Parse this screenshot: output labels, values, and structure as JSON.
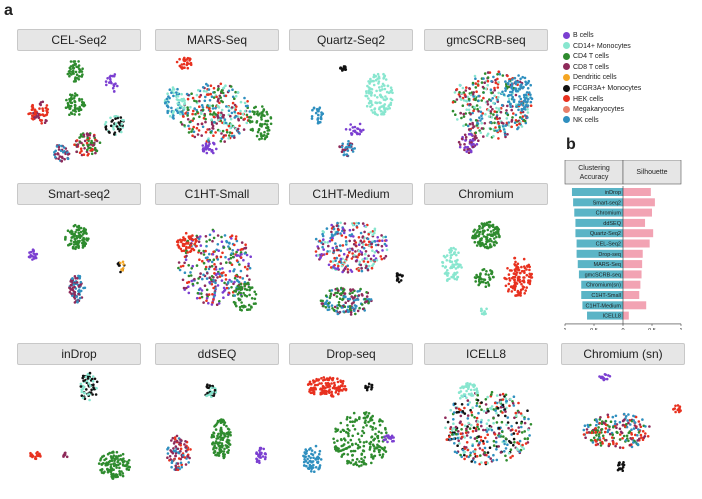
{
  "labels": {
    "panel_a": "a",
    "panel_b": "b"
  },
  "legend": [
    {
      "name": "B cells",
      "color": "#7b3fd1"
    },
    {
      "name": "CD14+ Monocytes",
      "color": "#88e6cf"
    },
    {
      "name": "CD4 T cells",
      "color": "#2e8b2e"
    },
    {
      "name": "CD8 T cells",
      "color": "#8e2a5a"
    },
    {
      "name": "Dendritic cells",
      "color": "#f5a623"
    },
    {
      "name": "FCGR3A+ Monocytes",
      "color": "#111111"
    },
    {
      "name": "HEK cells",
      "color": "#e8311f"
    },
    {
      "name": "Megakaryocytes",
      "color": "#e87f6a"
    },
    {
      "name": "NK cells",
      "color": "#2f8fbf"
    }
  ],
  "panels": [
    {
      "title": "CEL-Seq2"
    },
    {
      "title": "MARS-Seq"
    },
    {
      "title": "Quartz-Seq2"
    },
    {
      "title": "gmcSCRB-seq"
    },
    {
      "title": "Smart-seq2"
    },
    {
      "title": "C1HT-Small"
    },
    {
      "title": "C1HT-Medium"
    },
    {
      "title": "Chromium"
    },
    {
      "title": "inDrop"
    },
    {
      "title": "ddSEQ"
    },
    {
      "title": "Drop-seq"
    },
    {
      "title": "ICELL8"
    },
    {
      "title": "Chromium (sn)"
    }
  ],
  "chart_data": {
    "type": "bar",
    "header_left": "Clustering Accuracy",
    "header_right": "Silhouette",
    "categories": [
      "inDrop",
      "Smart-seq2",
      "Chromium",
      "ddSEQ",
      "Quartz-Seq2",
      "CEL-Seq2",
      "Drop-seq",
      "MARS-Seq",
      "gmcSCRB-seq",
      "Chromium(sn)",
      "C1HT-Small",
      "C1HT-Medium",
      "ICELL8"
    ],
    "series": [
      {
        "values": [
          0.88,
          0.86,
          0.84,
          0.82,
          0.82,
          0.8,
          0.8,
          0.78,
          0.76,
          0.72,
          0.72,
          0.7,
          0.62
        ],
        "color": "#5ab4c6"
      },
      {
        "values": [
          0.48,
          0.55,
          0.5,
          0.38,
          0.52,
          0.46,
          0.34,
          0.33,
          0.32,
          0.3,
          0.28,
          0.4,
          0.1
        ],
        "color": "#f2a3b3"
      }
    ],
    "xticks": [
      "1",
      "0.5",
      "0",
      "0.5",
      "1"
    ],
    "xlim": [
      -1,
      1
    ]
  },
  "colors": {
    "header_bg": "#e6e6e6",
    "header_border": "#c8c8c8"
  }
}
